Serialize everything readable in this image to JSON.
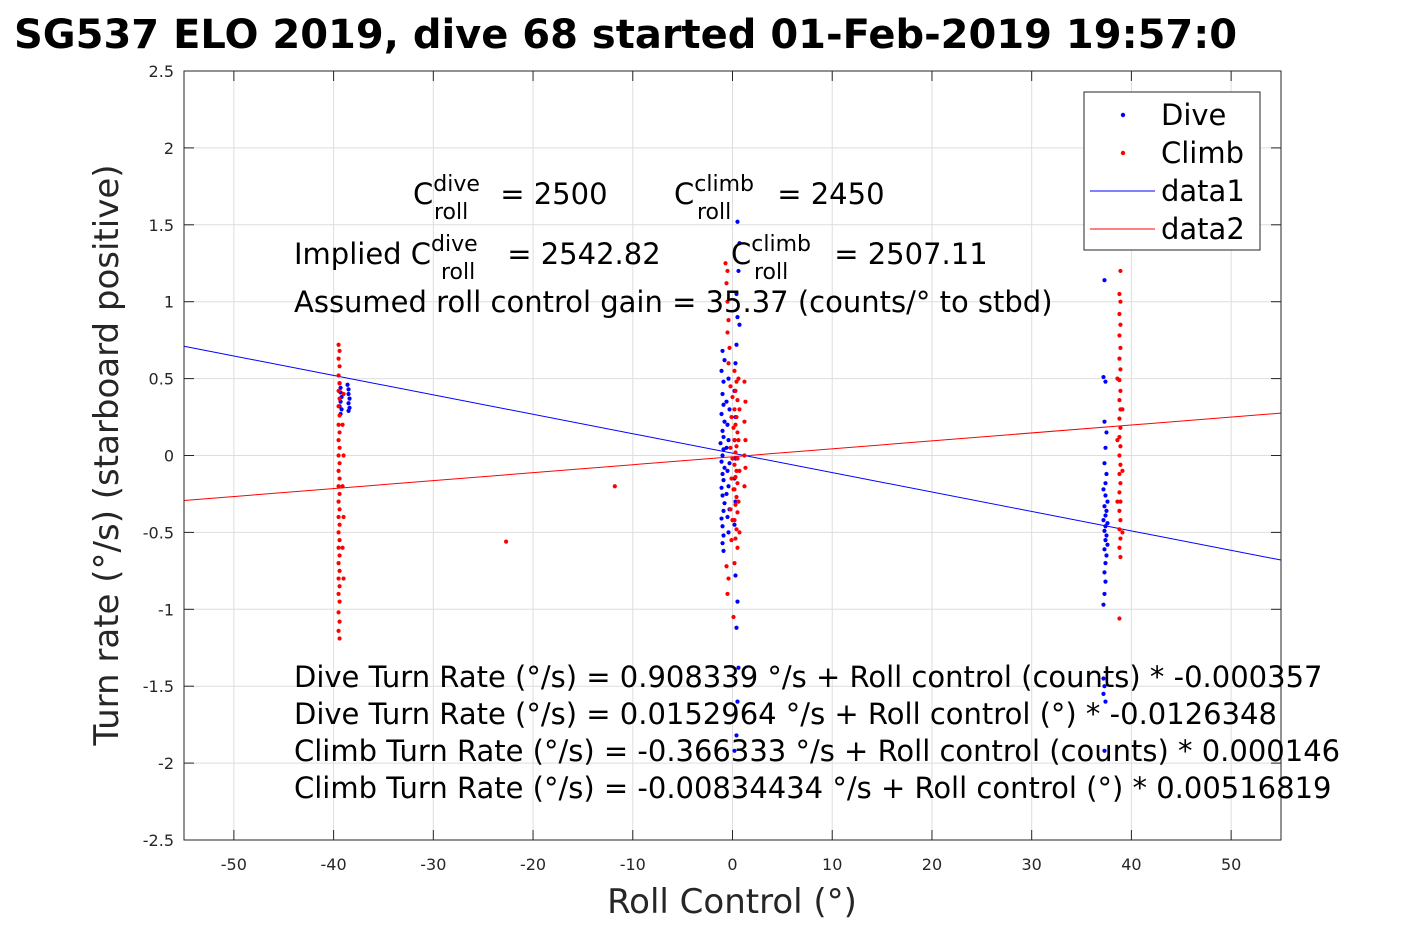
{
  "chart_data": {
    "type": "scatter",
    "title": "SG537 ELO 2019, dive 68 started 01-Feb-2019 19:57:0",
    "xlabel": "Roll Control (°)",
    "ylabel": "Turn rate (°/s) (starboard positive)",
    "xlim": [
      -55,
      55
    ],
    "ylim": [
      -2.5,
      2.5
    ],
    "xticks": [
      -50,
      -40,
      -30,
      -20,
      -10,
      0,
      10,
      20,
      30,
      40,
      50
    ],
    "yticks": [
      -2.5,
      -2,
      -1.5,
      -1,
      -0.5,
      0,
      0.5,
      1,
      1.5,
      2,
      2.5
    ],
    "xtick_labels": [
      "-50",
      "-40",
      "-30",
      "-20",
      "-10",
      "0",
      "10",
      "20",
      "30",
      "40",
      "50"
    ],
    "ytick_labels": [
      "-2.5",
      "-2",
      "-1.5",
      "-1",
      "-0.5",
      "0",
      "0.5",
      "1",
      "1.5",
      "2",
      "2.5"
    ],
    "grid": true,
    "legend_position": "top-right",
    "colors": {
      "dive": "#0000ff",
      "climb": "#ff0000"
    },
    "series": [
      {
        "name": "Dive",
        "kind": "points",
        "color": "#0000ff",
        "points": [
          [
            -39.4,
            0.47
          ],
          [
            -39.3,
            0.44
          ],
          [
            -39.3,
            0.41
          ],
          [
            -39.2,
            0.38
          ],
          [
            -39.3,
            0.35
          ],
          [
            -39.4,
            0.32
          ],
          [
            -39.2,
            0.3
          ],
          [
            -39.3,
            0.27
          ],
          [
            -38.6,
            0.46
          ],
          [
            -38.5,
            0.43
          ],
          [
            -38.5,
            0.4
          ],
          [
            -38.4,
            0.37
          ],
          [
            -38.5,
            0.34
          ],
          [
            -38.4,
            0.31
          ],
          [
            -38.5,
            0.29
          ],
          [
            0.5,
            1.52
          ],
          [
            0.7,
            1.38
          ],
          [
            0.6,
            1.2
          ],
          [
            0.4,
            1.05
          ],
          [
            0.5,
            0.9
          ],
          [
            0.7,
            0.85
          ],
          [
            0.4,
            0.72
          ],
          [
            0.3,
            0.6
          ],
          [
            -1.0,
            0.68
          ],
          [
            -0.8,
            0.62
          ],
          [
            -1.1,
            0.55
          ],
          [
            -0.9,
            0.48
          ],
          [
            -1.0,
            0.4
          ],
          [
            -0.9,
            0.33
          ],
          [
            -1.1,
            0.27
          ],
          [
            -0.8,
            0.22
          ],
          [
            -1.0,
            0.16
          ],
          [
            -0.9,
            0.12
          ],
          [
            -1.2,
            0.08
          ],
          [
            -0.9,
            0.04
          ],
          [
            -1.0,
            0.0
          ],
          [
            -1.1,
            -0.04
          ],
          [
            -0.8,
            -0.08
          ],
          [
            -1.0,
            -0.12
          ],
          [
            -0.9,
            -0.16
          ],
          [
            -1.1,
            -0.21
          ],
          [
            -1.0,
            -0.26
          ],
          [
            -0.8,
            -0.31
          ],
          [
            -0.9,
            -0.36
          ],
          [
            -1.1,
            -0.41
          ],
          [
            -1.0,
            -0.46
          ],
          [
            -0.9,
            -0.52
          ],
          [
            -1.0,
            -0.57
          ],
          [
            -0.9,
            -0.62
          ],
          [
            -0.6,
            0.35
          ],
          [
            -0.5,
            0.2
          ],
          [
            -0.6,
            0.05
          ],
          [
            -0.5,
            -0.1
          ],
          [
            -0.6,
            -0.25
          ],
          [
            -0.5,
            -0.4
          ],
          [
            -0.4,
            0.5
          ],
          [
            -0.3,
            0.3
          ],
          [
            -0.4,
            0.1
          ],
          [
            -0.3,
            -0.05
          ],
          [
            -0.4,
            -0.2
          ],
          [
            -0.3,
            -0.35
          ],
          [
            -0.4,
            -0.5
          ],
          [
            0.2,
            0.42
          ],
          [
            0.3,
            0.25
          ],
          [
            0.2,
            0.1
          ],
          [
            0.3,
            -0.02
          ],
          [
            0.2,
            -0.15
          ],
          [
            0.3,
            -0.3
          ],
          [
            0.2,
            -0.45
          ],
          [
            0.3,
            -0.78
          ],
          [
            0.5,
            -0.95
          ],
          [
            0.4,
            -1.12
          ],
          [
            0.6,
            -1.38
          ],
          [
            0.5,
            -1.6
          ],
          [
            0.4,
            -1.82
          ],
          [
            0.2,
            -1.92
          ],
          [
            37.3,
            1.14
          ],
          [
            37.2,
            0.51
          ],
          [
            37.4,
            0.48
          ],
          [
            37.3,
            0.22
          ],
          [
            37.5,
            0.15
          ],
          [
            37.4,
            0.05
          ],
          [
            37.3,
            -0.05
          ],
          [
            37.5,
            -0.12
          ],
          [
            37.4,
            -0.18
          ],
          [
            37.2,
            -0.22
          ],
          [
            37.4,
            -0.26
          ],
          [
            37.6,
            -0.3
          ],
          [
            37.3,
            -0.33
          ],
          [
            37.5,
            -0.36
          ],
          [
            37.4,
            -0.39
          ],
          [
            37.2,
            -0.42
          ],
          [
            37.6,
            -0.44
          ],
          [
            37.4,
            -0.46
          ],
          [
            37.3,
            -0.49
          ],
          [
            37.5,
            -0.52
          ],
          [
            37.4,
            -0.55
          ],
          [
            37.6,
            -0.58
          ],
          [
            37.3,
            -0.61
          ],
          [
            37.5,
            -0.65
          ],
          [
            37.4,
            -0.7
          ],
          [
            37.3,
            -0.76
          ],
          [
            37.4,
            -0.82
          ],
          [
            37.3,
            -0.9
          ],
          [
            37.2,
            -0.97
          ],
          [
            37.2,
            -1.45
          ],
          [
            37.3,
            -1.5
          ],
          [
            37.2,
            -1.55
          ],
          [
            37.4,
            -1.6
          ],
          [
            37.3,
            -1.92
          ]
        ]
      },
      {
        "name": "Climb",
        "kind": "points",
        "color": "#ff0000",
        "points": [
          [
            -39.5,
            0.72
          ],
          [
            -39.4,
            0.68
          ],
          [
            -39.5,
            0.63
          ],
          [
            -39.4,
            0.58
          ],
          [
            -39.5,
            0.52
          ],
          [
            -39.4,
            0.47
          ],
          [
            -39.5,
            0.42
          ],
          [
            -39.4,
            0.37
          ],
          [
            -39.5,
            0.32
          ],
          [
            -39.4,
            0.26
          ],
          [
            -39.5,
            0.2
          ],
          [
            -39.4,
            0.15
          ],
          [
            -39.5,
            0.1
          ],
          [
            -39.4,
            0.05
          ],
          [
            -39.5,
            0.0
          ],
          [
            -39.4,
            -0.05
          ],
          [
            -39.5,
            -0.1
          ],
          [
            -39.4,
            -0.15
          ],
          [
            -39.5,
            -0.2
          ],
          [
            -39.4,
            -0.25
          ],
          [
            -39.5,
            -0.3
          ],
          [
            -39.4,
            -0.35
          ],
          [
            -39.5,
            -0.4
          ],
          [
            -39.4,
            -0.45
          ],
          [
            -39.5,
            -0.5
          ],
          [
            -39.4,
            -0.55
          ],
          [
            -39.5,
            -0.6
          ],
          [
            -39.4,
            -0.65
          ],
          [
            -39.5,
            -0.7
          ],
          [
            -39.4,
            -0.75
          ],
          [
            -39.5,
            -0.8
          ],
          [
            -39.4,
            -0.85
          ],
          [
            -39.5,
            -0.9
          ],
          [
            -39.4,
            -0.95
          ],
          [
            -39.5,
            -1.02
          ],
          [
            -39.4,
            -1.08
          ],
          [
            -39.5,
            -1.14
          ],
          [
            -39.4,
            -1.19
          ],
          [
            -39.0,
            0.4
          ],
          [
            -39.1,
            0.2
          ],
          [
            -39.0,
            0.0
          ],
          [
            -39.1,
            -0.2
          ],
          [
            -39.0,
            -0.4
          ],
          [
            -39.1,
            -0.6
          ],
          [
            -39.0,
            -0.8
          ],
          [
            -22.7,
            -0.56
          ],
          [
            -11.8,
            -0.2
          ],
          [
            -0.7,
            1.25
          ],
          [
            -0.5,
            1.2
          ],
          [
            -0.6,
            1.12
          ],
          [
            -0.5,
            1.0
          ],
          [
            -0.4,
            0.88
          ],
          [
            -0.5,
            0.8
          ],
          [
            -0.3,
            0.7
          ],
          [
            -0.4,
            0.6
          ],
          [
            0.2,
            0.55
          ],
          [
            0.4,
            0.48
          ],
          [
            0.3,
            0.42
          ],
          [
            0.5,
            0.36
          ],
          [
            0.2,
            0.3
          ],
          [
            0.4,
            0.25
          ],
          [
            0.3,
            0.2
          ],
          [
            0.5,
            0.15
          ],
          [
            0.2,
            0.1
          ],
          [
            0.4,
            0.06
          ],
          [
            0.3,
            0.02
          ],
          [
            0.5,
            -0.02
          ],
          [
            0.2,
            -0.06
          ],
          [
            0.4,
            -0.1
          ],
          [
            0.3,
            -0.14
          ],
          [
            0.5,
            -0.18
          ],
          [
            0.2,
            -0.22
          ],
          [
            0.4,
            -0.27
          ],
          [
            0.3,
            -0.32
          ],
          [
            0.5,
            -0.37
          ],
          [
            0.2,
            -0.42
          ],
          [
            0.4,
            -0.48
          ],
          [
            0.3,
            -0.54
          ],
          [
            0.5,
            -0.6
          ],
          [
            0.6,
            0.5
          ],
          [
            0.7,
            0.3
          ],
          [
            0.6,
            0.1
          ],
          [
            0.7,
            -0.1
          ],
          [
            0.6,
            -0.3
          ],
          [
            0.7,
            -0.5
          ],
          [
            -0.2,
            0.45
          ],
          [
            -0.1,
            0.25
          ],
          [
            -0.2,
            0.05
          ],
          [
            -0.1,
            -0.15
          ],
          [
            -0.2,
            -0.35
          ],
          [
            -0.1,
            -0.55
          ],
          [
            0.0,
            0.38
          ],
          [
            0.1,
            0.18
          ],
          [
            0.0,
            -0.02
          ],
          [
            0.1,
            -0.22
          ],
          [
            0.0,
            -0.42
          ],
          [
            1.2,
            0.48
          ],
          [
            1.3,
            0.35
          ],
          [
            1.2,
            0.22
          ],
          [
            1.3,
            0.1
          ],
          [
            1.2,
            0.0
          ],
          [
            1.3,
            -0.08
          ],
          [
            1.2,
            -0.2
          ],
          [
            -0.6,
            -0.72
          ],
          [
            -0.4,
            -0.8
          ],
          [
            -0.5,
            -0.9
          ],
          [
            0.1,
            -1.05
          ],
          [
            0.2,
            -0.7
          ],
          [
            38.9,
            1.2
          ],
          [
            38.8,
            1.05
          ],
          [
            38.9,
            1.0
          ],
          [
            38.8,
            0.92
          ],
          [
            38.9,
            0.85
          ],
          [
            38.8,
            0.78
          ],
          [
            38.9,
            0.7
          ],
          [
            38.8,
            0.63
          ],
          [
            38.9,
            0.56
          ],
          [
            38.8,
            0.49
          ],
          [
            38.9,
            0.42
          ],
          [
            38.8,
            0.36
          ],
          [
            38.9,
            0.3
          ],
          [
            38.8,
            0.24
          ],
          [
            38.9,
            0.18
          ],
          [
            38.8,
            0.12
          ],
          [
            38.9,
            0.06
          ],
          [
            38.8,
            0.0
          ],
          [
            38.9,
            -0.06
          ],
          [
            38.8,
            -0.12
          ],
          [
            38.9,
            -0.18
          ],
          [
            38.8,
            -0.24
          ],
          [
            38.9,
            -0.3
          ],
          [
            38.8,
            -0.36
          ],
          [
            38.9,
            -0.42
          ],
          [
            38.8,
            -0.48
          ],
          [
            38.9,
            -0.54
          ],
          [
            38.8,
            -0.6
          ],
          [
            38.9,
            -0.66
          ],
          [
            38.8,
            -1.06
          ],
          [
            38.6,
            0.5
          ],
          [
            38.6,
            0.1
          ],
          [
            38.6,
            -0.3
          ],
          [
            39.1,
            0.3
          ],
          [
            39.1,
            -0.1
          ],
          [
            39.1,
            -0.5
          ]
        ]
      },
      {
        "name": "data1",
        "kind": "line",
        "color": "#0000ff",
        "x": [
          -55,
          55
        ],
        "y": [
          0.7101,
          -0.6796
        ]
      },
      {
        "name": "data2",
        "kind": "line",
        "color": "#ff0000",
        "x": [
          -55,
          55
        ],
        "y": [
          -0.2926,
          0.2759
        ]
      }
    ],
    "annotations": {
      "c_roll_dive": {
        "base": "C",
        "sup": "dive",
        "sub": "roll",
        "value": " = 2500"
      },
      "c_roll_climb": {
        "base": "C",
        "sup": "climb",
        "sub": "roll",
        "value": " = 2450"
      },
      "implied_dive": {
        "prefix": "Implied C",
        "sup": "dive",
        "sub": "roll",
        "value": " = 2542.82"
      },
      "implied_climb": {
        "base": "C",
        "sup": "climb",
        "sub": "roll",
        "value": " = 2507.11"
      },
      "gain": "Assumed roll control gain = 35.37 (counts/° to stbd)",
      "fit1": "Dive Turn Rate (°/s) = 0.908339 °/s + Roll control (counts) * -0.000357",
      "fit2": "Dive Turn Rate (°/s) = 0.0152964 °/s + Roll control (°) * -0.0126348",
      "fit3": "Climb Turn Rate (°/s) = -0.366333 °/s + Roll control (counts) * 0.000146",
      "fit4": "Climb Turn Rate (°/s) = -0.00834434 °/s + Roll control (°) * 0.00516819"
    }
  }
}
